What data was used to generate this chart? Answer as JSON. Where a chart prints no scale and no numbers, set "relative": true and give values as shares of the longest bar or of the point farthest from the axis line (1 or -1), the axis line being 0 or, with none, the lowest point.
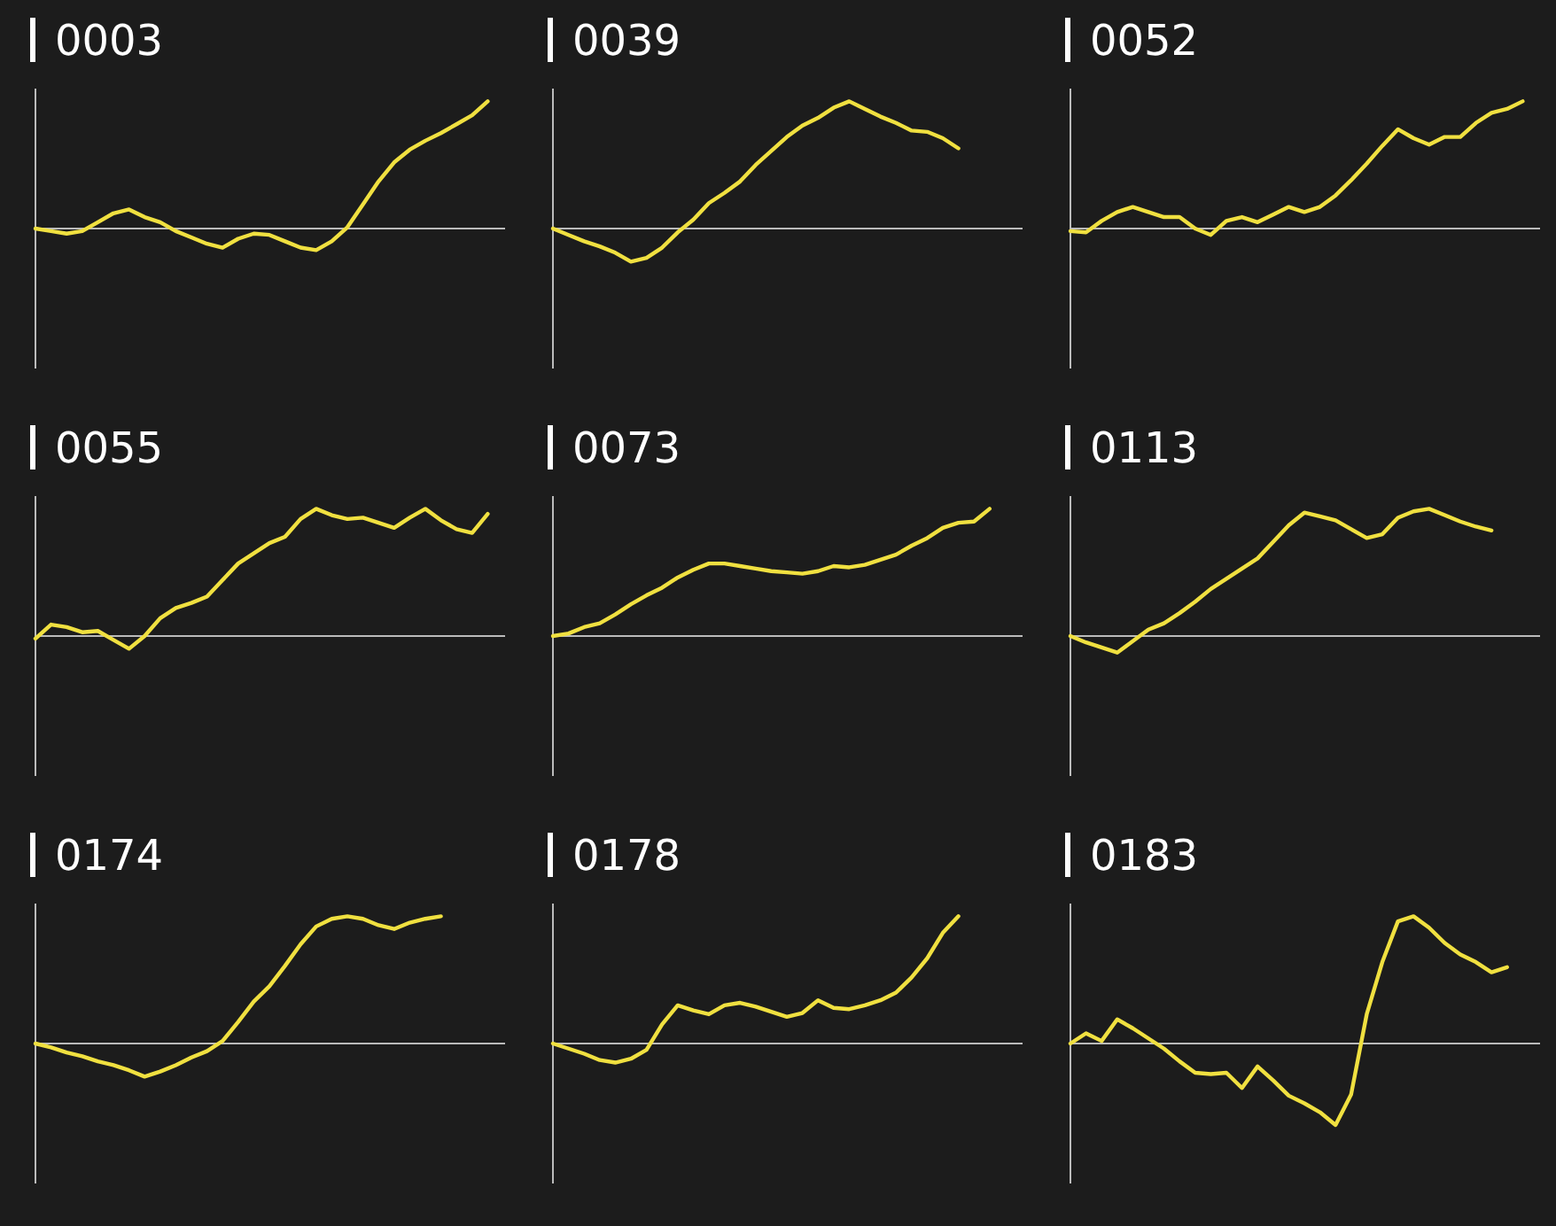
{
  "chart_data": [
    {
      "type": "line",
      "title": "0003",
      "relative": true,
      "color": "#f0e040",
      "categories": [
        null,
        null,
        null,
        null,
        null,
        null,
        null,
        null,
        null,
        null,
        null,
        null,
        null,
        null,
        null,
        null,
        null,
        null,
        null,
        null,
        null,
        null,
        null,
        null,
        null,
        null,
        null,
        null,
        null,
        null,
        null
      ],
      "values": [
        0,
        -0.02,
        -0.04,
        -0.02,
        0.05,
        0.12,
        0.15,
        0.09,
        0.05,
        -0.02,
        -0.07,
        -0.12,
        -0.15,
        -0.08,
        -0.04,
        -0.05,
        -0.1,
        -0.15,
        -0.17,
        -0.1,
        0.01,
        0.19,
        0.37,
        0.52,
        0.62,
        0.69,
        0.75,
        0.82,
        0.89,
        1.0,
        null
      ]
    },
    {
      "type": "line",
      "title": "0039",
      "relative": true,
      "color": "#f0e040",
      "categories": [
        null,
        null,
        null,
        null,
        null,
        null,
        null,
        null,
        null,
        null,
        null,
        null,
        null,
        null,
        null,
        null,
        null,
        null,
        null,
        null,
        null,
        null,
        null,
        null,
        null,
        null,
        null,
        null,
        null,
        null,
        null
      ],
      "values": [
        0,
        -0.05,
        -0.1,
        -0.14,
        -0.19,
        -0.26,
        -0.23,
        -0.15,
        -0.03,
        0.07,
        0.2,
        0.28,
        0.37,
        0.5,
        0.61,
        0.72,
        0.81,
        0.87,
        0.95,
        1.0,
        0.94,
        0.88,
        0.83,
        0.77,
        0.76,
        0.71,
        0.63,
        null,
        null,
        null,
        null
      ]
    },
    {
      "type": "line",
      "title": "0052",
      "relative": true,
      "color": "#f0e040",
      "categories": [
        null,
        null,
        null,
        null,
        null,
        null,
        null,
        null,
        null,
        null,
        null,
        null,
        null,
        null,
        null,
        null,
        null,
        null,
        null,
        null,
        null,
        null,
        null,
        null,
        null,
        null,
        null,
        null,
        null,
        null,
        null
      ],
      "values": [
        -0.02,
        -0.03,
        0.06,
        0.13,
        0.17,
        0.13,
        0.09,
        0.09,
        0,
        -0.05,
        0.06,
        0.09,
        0.05,
        0.11,
        0.17,
        0.13,
        0.17,
        0.26,
        0.38,
        0.51,
        0.65,
        0.78,
        0.71,
        0.66,
        0.72,
        0.72,
        0.83,
        0.91,
        0.94,
        1.0,
        null
      ]
    },
    {
      "type": "line",
      "title": "0055",
      "relative": true,
      "color": "#f0e040",
      "categories": [
        null,
        null,
        null,
        null,
        null,
        null,
        null,
        null,
        null,
        null,
        null,
        null,
        null,
        null,
        null,
        null,
        null,
        null,
        null,
        null,
        null,
        null,
        null,
        null,
        null,
        null,
        null,
        null,
        null,
        null,
        null
      ],
      "values": [
        -0.02,
        0.09,
        0.07,
        0.03,
        0.04,
        -0.03,
        -0.1,
        0,
        0.14,
        0.22,
        0.26,
        0.31,
        0.44,
        0.57,
        0.65,
        0.73,
        0.78,
        0.92,
        1.0,
        0.95,
        0.92,
        0.93,
        0.89,
        0.85,
        0.93,
        1.0,
        0.91,
        0.84,
        0.81,
        0.96,
        null
      ]
    },
    {
      "type": "line",
      "title": "0073",
      "relative": true,
      "color": "#f0e040",
      "categories": [
        null,
        null,
        null,
        null,
        null,
        null,
        null,
        null,
        null,
        null,
        null,
        null,
        null,
        null,
        null,
        null,
        null,
        null,
        null,
        null,
        null,
        null,
        null,
        null,
        null,
        null,
        null,
        null,
        null,
        null,
        null
      ],
      "values": [
        0,
        0.02,
        0.07,
        0.1,
        0.17,
        0.25,
        0.32,
        0.38,
        0.46,
        0.52,
        0.57,
        0.57,
        0.55,
        0.53,
        0.51,
        0.5,
        0.49,
        0.51,
        0.55,
        0.54,
        0.56,
        0.6,
        0.64,
        0.71,
        0.77,
        0.85,
        0.89,
        0.9,
        1.0,
        null,
        null
      ]
    },
    {
      "type": "line",
      "title": "0113",
      "relative": true,
      "color": "#f0e040",
      "categories": [
        null,
        null,
        null,
        null,
        null,
        null,
        null,
        null,
        null,
        null,
        null,
        null,
        null,
        null,
        null,
        null,
        null,
        null,
        null,
        null,
        null,
        null,
        null,
        null,
        null,
        null,
        null,
        null,
        null,
        null,
        null
      ],
      "values": [
        0,
        -0.05,
        -0.09,
        -0.13,
        -0.04,
        0.05,
        0.1,
        0.18,
        0.27,
        0.37,
        0.45,
        0.53,
        0.61,
        0.74,
        0.87,
        0.97,
        0.94,
        0.91,
        0.84,
        0.77,
        0.8,
        0.93,
        0.98,
        1.0,
        0.95,
        0.9,
        0.86,
        0.83,
        null,
        null,
        null
      ]
    },
    {
      "type": "line",
      "title": "0174",
      "relative": true,
      "color": "#f0e040",
      "categories": [
        null,
        null,
        null,
        null,
        null,
        null,
        null,
        null,
        null,
        null,
        null,
        null,
        null,
        null,
        null,
        null,
        null,
        null,
        null,
        null,
        null,
        null,
        null,
        null,
        null,
        null,
        null,
        null,
        null,
        null,
        null
      ],
      "values": [
        0,
        -0.03,
        -0.07,
        -0.1,
        -0.14,
        -0.17,
        -0.21,
        -0.26,
        -0.22,
        -0.17,
        -0.11,
        -0.06,
        0.02,
        0.17,
        0.33,
        0.45,
        0.61,
        0.78,
        0.92,
        0.98,
        1.0,
        0.98,
        0.93,
        0.9,
        0.95,
        0.98,
        1.0,
        null,
        null,
        null,
        null
      ]
    },
    {
      "type": "line",
      "title": "0178",
      "relative": true,
      "color": "#f0e040",
      "categories": [
        null,
        null,
        null,
        null,
        null,
        null,
        null,
        null,
        null,
        null,
        null,
        null,
        null,
        null,
        null,
        null,
        null,
        null,
        null,
        null,
        null,
        null,
        null,
        null,
        null,
        null,
        null,
        null,
        null,
        null,
        null
      ],
      "values": [
        0,
        -0.04,
        -0.08,
        -0.13,
        -0.15,
        -0.12,
        -0.05,
        0.15,
        0.3,
        0.26,
        0.23,
        0.3,
        0.32,
        0.29,
        0.25,
        0.21,
        0.24,
        0.34,
        0.28,
        0.27,
        0.3,
        0.34,
        0.4,
        0.52,
        0.67,
        0.87,
        1.0,
        null,
        null,
        null,
        null
      ]
    },
    {
      "type": "line",
      "title": "0183",
      "relative": true,
      "color": "#f0e040",
      "categories": [
        null,
        null,
        null,
        null,
        null,
        null,
        null,
        null,
        null,
        null,
        null,
        null,
        null,
        null,
        null,
        null,
        null,
        null,
        null,
        null,
        null,
        null,
        null,
        null,
        null,
        null,
        null,
        null,
        null,
        null,
        null
      ],
      "values": [
        0,
        0.08,
        0.02,
        0.19,
        0.12,
        0.04,
        -0.04,
        -0.14,
        -0.23,
        -0.24,
        -0.23,
        -0.35,
        -0.18,
        -0.29,
        -0.41,
        -0.47,
        -0.54,
        -0.64,
        -0.4,
        0.23,
        0.64,
        0.96,
        1.0,
        0.91,
        0.79,
        0.7,
        0.64,
        0.56,
        0.6,
        null,
        null
      ]
    }
  ]
}
